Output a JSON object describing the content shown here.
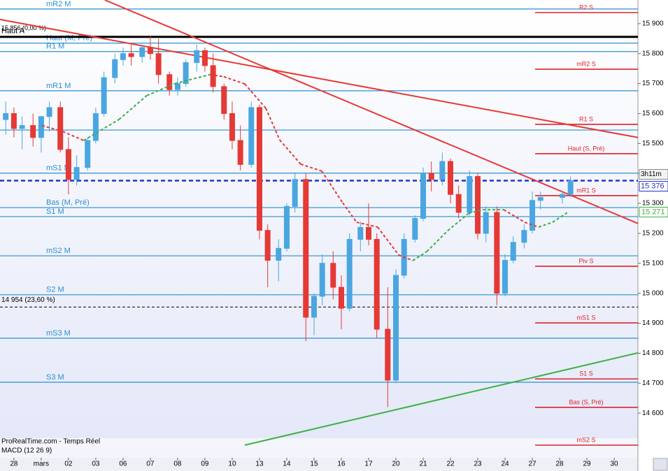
{
  "chart_data": {
    "type": "candlestick",
    "x": [
      -0.3,
      0,
      0.3,
      0.7,
      1,
      1.3,
      1.7,
      2,
      2.3,
      2.7,
      3,
      3.3,
      3.7,
      4,
      4.3,
      4.7,
      5,
      5.3,
      5.7,
      6,
      6.3,
      6.7,
      7,
      7.3,
      7.7,
      8,
      8.3,
      8.7,
      9,
      9.3,
      9.7,
      10,
      10.3,
      10.7,
      11,
      11.3,
      11.7,
      12,
      12.3,
      12.7,
      13,
      13.3,
      13.7,
      14,
      14.3,
      14.7,
      15,
      15.3,
      15.7,
      16,
      16.3,
      16.7,
      17,
      17.3,
      17.7,
      18,
      18.3,
      18.7,
      19,
      19.3,
      20.1,
      20.4
    ],
    "open": [
      15580,
      15600,
      15550,
      15560,
      15520,
      15590,
      15620,
      15480,
      15380,
      15420,
      15510,
      15600,
      15720,
      15780,
      15800,
      15790,
      15820,
      15800,
      15730,
      15680,
      15700,
      15770,
      15810,
      15760,
      15690,
      15600,
      15510,
      15430,
      15620,
      15210,
      15110,
      15150,
      15290,
      15380,
      14920,
      14990,
      15100,
      15020,
      14950,
      15180,
      15220,
      15180,
      14880,
      14710,
      15060,
      15180,
      15250,
      15400,
      15380,
      15440,
      15330,
      15270,
      15390,
      15200,
      15270,
      15000,
      15110,
      15170,
      15210,
      15310,
      15320,
      15330
    ],
    "high": [
      15640,
      15620,
      15590,
      15600,
      15580,
      15640,
      15640,
      15520,
      15460,
      15520,
      15620,
      15740,
      15800,
      15820,
      15830,
      15830,
      15860,
      15850,
      15740,
      15720,
      15780,
      15830,
      15820,
      15800,
      15700,
      15640,
      15560,
      15640,
      15630,
      15230,
      15180,
      15300,
      15400,
      15400,
      15000,
      15130,
      15140,
      15060,
      15200,
      15240,
      15300,
      15200,
      15020,
      15080,
      15200,
      15260,
      15420,
      15440,
      15470,
      15450,
      15360,
      15410,
      15400,
      15290,
      15290,
      15130,
      15190,
      15230,
      15340,
      15340,
      15340,
      15390
    ],
    "low": [
      15530,
      15520,
      15480,
      15490,
      15470,
      15540,
      15470,
      15330,
      15360,
      15410,
      15500,
      15590,
      15700,
      15760,
      15760,
      15770,
      15780,
      15700,
      15660,
      15660,
      15690,
      15740,
      15740,
      15670,
      15580,
      15480,
      15410,
      15420,
      15180,
      15020,
      15040,
      15140,
      15270,
      14840,
      14860,
      14960,
      14980,
      14880,
      14940,
      15140,
      15160,
      14850,
      14620,
      14700,
      15050,
      15170,
      15240,
      15340,
      15360,
      15300,
      15250,
      15260,
      15180,
      15170,
      14960,
      14990,
      15100,
      15150,
      15200,
      15280,
      15300,
      15320
    ],
    "close": [
      15600,
      15550,
      15560,
      15520,
      15590,
      15620,
      15480,
      15380,
      15420,
      15510,
      15600,
      15720,
      15780,
      15800,
      15790,
      15820,
      15800,
      15730,
      15680,
      15700,
      15770,
      15810,
      15760,
      15690,
      15600,
      15510,
      15430,
      15620,
      15210,
      15110,
      15150,
      15290,
      15380,
      14920,
      14990,
      15100,
      15020,
      14950,
      15180,
      15220,
      15180,
      14880,
      14710,
      15060,
      15180,
      15250,
      15400,
      15380,
      15440,
      15330,
      15270,
      15390,
      15200,
      15270,
      15000,
      15110,
      15170,
      15210,
      15310,
      15320,
      15330,
      15376
    ],
    "up_color": "#4aa6e0",
    "down_color": "#e53935",
    "xlim": [
      -0.51,
      22.87
    ],
    "ylim": [
      14451,
      15979
    ],
    "xticks": [
      {
        "value": 0,
        "label": "28"
      },
      {
        "value": 1,
        "label": "mars"
      },
      {
        "value": 2,
        "label": "02"
      },
      {
        "value": 3,
        "label": "03"
      },
      {
        "value": 4,
        "label": "06"
      },
      {
        "value": 5,
        "label": "07"
      },
      {
        "value": 6,
        "label": "08"
      },
      {
        "value": 7,
        "label": "09"
      },
      {
        "value": 8,
        "label": "10"
      },
      {
        "value": 9,
        "label": "13"
      },
      {
        "value": 10,
        "label": "14"
      },
      {
        "value": 11,
        "label": "15"
      },
      {
        "value": 12,
        "label": "16"
      },
      {
        "value": 13,
        "label": "17"
      },
      {
        "value": 14,
        "label": "20"
      },
      {
        "value": 15,
        "label": "21"
      },
      {
        "value": 16,
        "label": "22"
      },
      {
        "value": 17,
        "label": "23"
      },
      {
        "value": 18,
        "label": "24"
      },
      {
        "value": 19,
        "label": "27"
      },
      {
        "value": 20,
        "label": "28"
      },
      {
        "value": 21,
        "label": "29"
      },
      {
        "value": 22,
        "label": "30"
      }
    ],
    "yticks": [
      {
        "value": 14600,
        "label": "14 600"
      },
      {
        "value": 14700,
        "label": "14 700"
      },
      {
        "value": 14800,
        "label": "14 800"
      },
      {
        "value": 14900,
        "label": "14 900"
      },
      {
        "value": 15000,
        "label": "15 000"
      },
      {
        "value": 15100,
        "label": "15 100"
      },
      {
        "value": 15200,
        "label": "15 200"
      },
      {
        "value": 15300,
        "label": "15 300"
      },
      {
        "value": 15400,
        "label": "15 400"
      },
      {
        "value": 15500,
        "label": "15 500"
      },
      {
        "value": 15600,
        "label": "15 600"
      },
      {
        "value": 15700,
        "label": "15 700"
      },
      {
        "value": 15800,
        "label": "15 800"
      },
      {
        "value": 15900,
        "label": "15 900"
      }
    ],
    "levels": [
      {
        "label": "mR2 M",
        "value": 15949,
        "side": "left",
        "color": "#2a8fd0"
      },
      {
        "label": "Haut (M, Pré)",
        "value": 15835,
        "side": "left",
        "color": "#2a8fd0"
      },
      {
        "label": "R1 M",
        "value": 15807,
        "side": "left",
        "color": "#2a8fd0"
      },
      {
        "label": "mR1 M",
        "value": 15676,
        "side": "left",
        "color": "#2a8fd0"
      },
      {
        "value": 15545,
        "side": "left",
        "color": "#2a8fd0"
      },
      {
        "label": "mS1 M",
        "value": 15401,
        "side": "left",
        "color": "#2a8fd0"
      },
      {
        "label": "Bas (M, Pré)",
        "value": 15286,
        "side": "left",
        "color": "#2a8fd0"
      },
      {
        "label": "S1 M",
        "value": 15256,
        "side": "left",
        "color": "#2a8fd0"
      },
      {
        "label": "mS2 M",
        "value": 15125,
        "side": "left",
        "color": "#2a8fd0"
      },
      {
        "label": "S2 M",
        "value": 14995,
        "side": "left",
        "color": "#2a8fd0"
      },
      {
        "label": "mS3 M",
        "value": 14850,
        "side": "left",
        "color": "#2a8fd0"
      },
      {
        "label": "S3 M",
        "value": 14703,
        "side": "left",
        "color": "#2a8fd0"
      },
      {
        "label": "R2 S",
        "value": 15937,
        "side": "right",
        "color": "#e0202a"
      },
      {
        "label": "mR2 S",
        "value": 15748,
        "side": "right",
        "color": "#e0202a"
      },
      {
        "label": "R1 S",
        "value": 15564,
        "side": "right",
        "color": "#e0202a"
      },
      {
        "label": "Haut (S, Pré)",
        "value": 15466,
        "side": "right",
        "color": "#e0202a"
      },
      {
        "label": "mR1 S",
        "value": 15326,
        "side": "right",
        "color": "#e0202a"
      },
      {
        "label": "Piv S",
        "value": 15090,
        "side": "right",
        "color": "#e0202a"
      },
      {
        "label": "mS1 S",
        "value": 14901,
        "side": "right",
        "color": "#e0202a"
      },
      {
        "label": "S1 S",
        "value": 14714,
        "side": "right",
        "color": "#e0202a"
      },
      {
        "label": "Bas (S, Pré)",
        "value": 14619,
        "side": "right",
        "color": "#e0202a"
      },
      {
        "label": "mS2 S",
        "value": 14493,
        "side": "right",
        "color": "#e0202a"
      }
    ],
    "trendlines": [
      {
        "x": [
          3.33,
          22.87
        ],
        "y": [
          15979,
          15233
        ],
        "color": "#e53935"
      },
      {
        "x": [
          -0.51,
          22.87
        ],
        "y": [
          15914,
          15520
        ],
        "color": "#e53935"
      },
      {
        "x": [
          8.46,
          22.87
        ],
        "y": [
          14493,
          14801
        ],
        "color": "#3cb043"
      }
    ],
    "ma": {
      "x": [
        1.03,
        1.79,
        2.56,
        3.85,
        4.87,
        5.9,
        7.18,
        7.69,
        8.46,
        9.23,
        9.74,
        10.51,
        11.28,
        12.05,
        12.56,
        13.33,
        14.1,
        14.62,
        15.13,
        15.9,
        16.67,
        17.18,
        17.95,
        18.72,
        19.23,
        19.74,
        20.31
      ],
      "values": [
        15560,
        15540,
        15510,
        15580,
        15660,
        15700,
        15730,
        15723,
        15699,
        15618,
        15512,
        15431,
        15408,
        15302,
        15237,
        15221,
        15128,
        15109,
        15139,
        15209,
        15267,
        15279,
        15279,
        15237,
        15221,
        15237,
        15271
      ],
      "up_color": "#3cb043",
      "down_color": "#e53935"
    },
    "high_line": {
      "value": 15856,
      "label": "Haut A",
      "value_label": "15 856 (0,00 %)"
    },
    "fibo_line": {
      "value": 14954,
      "value_label": "14 954 (23,60 %)"
    },
    "last_price": {
      "value": 15376,
      "value_label": "15 376",
      "timer": "3h11m"
    },
    "ma_last": {
      "value": 15271,
      "value_label": "15 271"
    },
    "source": "ProRealTime.com - Temps Réel",
    "indicator": "MACD (12 26 9)"
  }
}
